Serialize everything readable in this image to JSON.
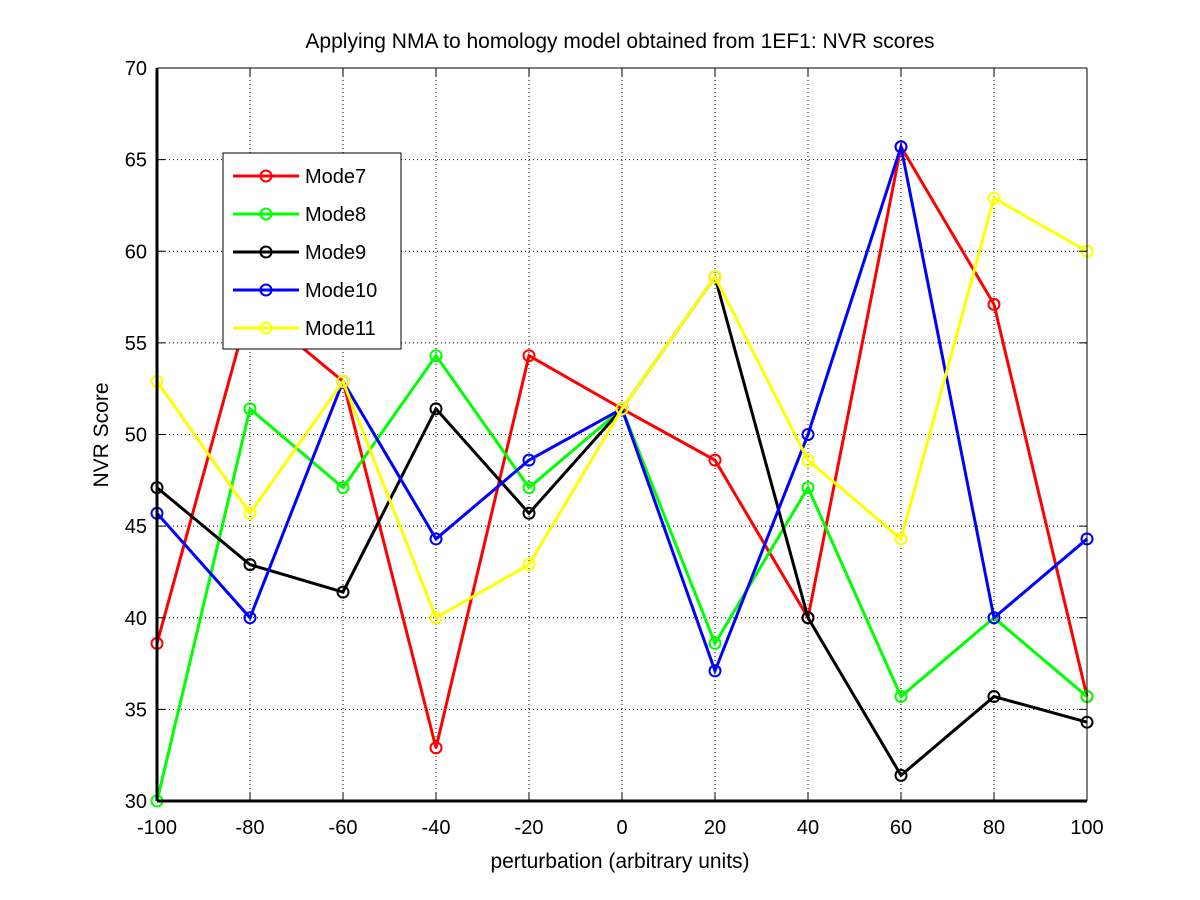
{
  "chart_data": {
    "type": "line",
    "title": "Applying NMA to homology model obtained from 1EF1: NVR scores",
    "xlabel": "perturbation (arbitrary units)",
    "ylabel": "NVR Score",
    "x": [
      -100,
      -80,
      -60,
      -40,
      -20,
      0,
      20,
      40,
      60,
      80,
      100
    ],
    "xticks": [
      "-100",
      "-80",
      "-60",
      "-40",
      "-20",
      "0",
      "20",
      "40",
      "60",
      "80",
      "100"
    ],
    "xlim": [
      -100,
      100
    ],
    "yticks": [
      "30",
      "35",
      "40",
      "45",
      "50",
      "55",
      "60",
      "65",
      "70"
    ],
    "ylim": [
      30,
      70
    ],
    "grid": true,
    "legend_position": "top-left",
    "series": [
      {
        "name": "Mode7",
        "color": "#ff0000",
        "values": [
          38.6,
          57.1,
          52.9,
          32.9,
          54.3,
          51.4,
          48.6,
          40.0,
          65.7,
          57.1,
          35.7
        ]
      },
      {
        "name": "Mode8",
        "color": "#00ff00",
        "values": [
          30.0,
          51.4,
          47.1,
          54.3,
          47.1,
          51.4,
          38.6,
          47.1,
          35.7,
          40.0,
          35.7
        ]
      },
      {
        "name": "Mode9",
        "color": "#000000",
        "values": [
          47.1,
          42.9,
          41.4,
          51.4,
          45.7,
          51.4,
          58.6,
          40.0,
          31.4,
          35.7,
          34.3
        ]
      },
      {
        "name": "Mode10",
        "color": "#0000ff",
        "values": [
          45.7,
          40.0,
          52.9,
          44.3,
          48.6,
          51.4,
          37.1,
          50.0,
          65.7,
          40.0,
          44.3
        ]
      },
      {
        "name": "Mode11",
        "color": "#ffff00",
        "values": [
          52.9,
          45.7,
          52.9,
          40.0,
          42.9,
          51.4,
          58.6,
          48.6,
          44.3,
          62.9,
          60.0
        ]
      }
    ]
  }
}
